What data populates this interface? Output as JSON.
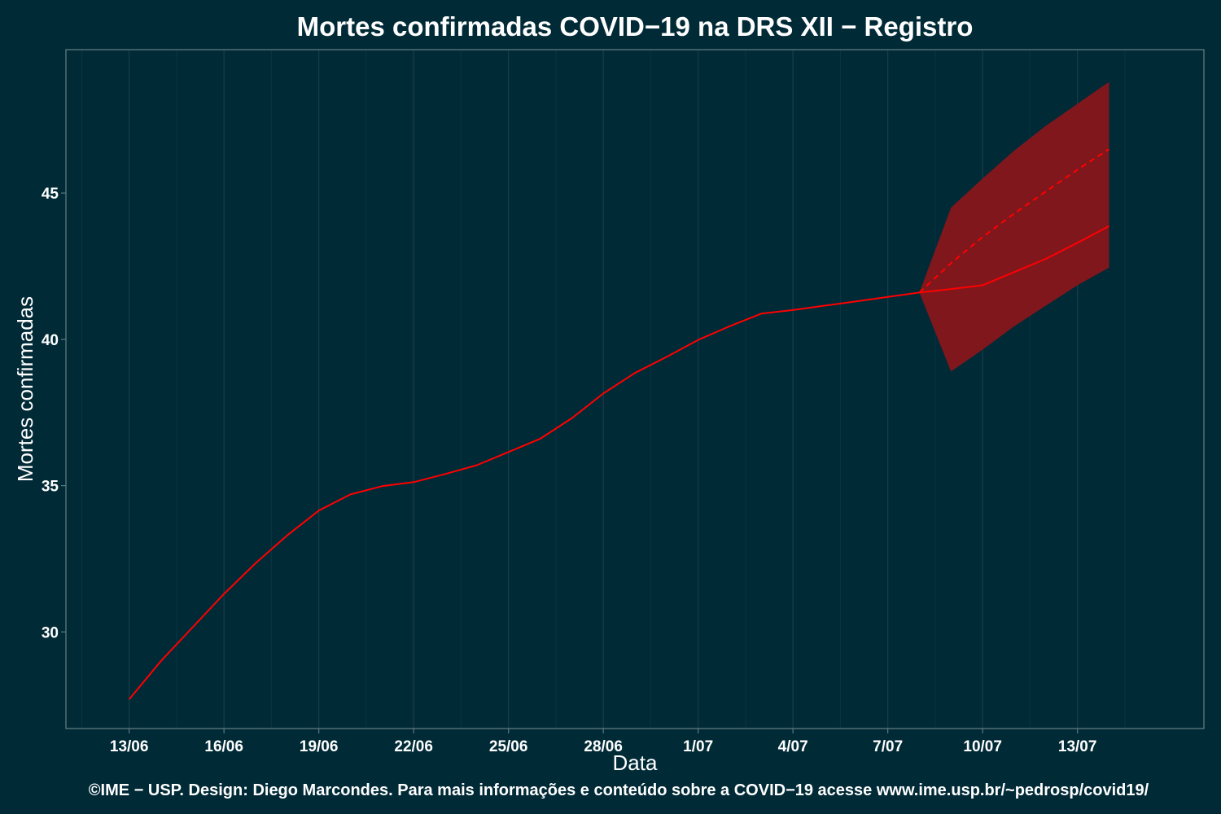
{
  "title": "Mortes confirmadas COVID−19 na DRS XII − Registro",
  "footer": "©IME − USP. Design: Diego Marcondes. Para mais informações e conteúdo sobre a COVID−19 acesse www.ime.usp.br/~pedrosp/covid19/",
  "colors": {
    "background": "#012a37",
    "line": "#ff0000",
    "band": "#80171c",
    "panel_border": "#5f7a80",
    "text": "#ffffff"
  },
  "chart_data": {
    "type": "line",
    "title": "Mortes confirmadas COVID−19 na DRS XII − Registro",
    "xlabel": "Data",
    "ylabel": "Mortes confirmadas",
    "x_tick_labels": [
      "13/06",
      "16/06",
      "19/06",
      "22/06",
      "25/06",
      "28/06",
      "1/07",
      "4/07",
      "7/07",
      "10/07",
      "13/07"
    ],
    "y_tick_labels": [
      "30",
      "35",
      "40",
      "45"
    ],
    "y_ticks": [
      30,
      35,
      40,
      45
    ],
    "x_ticks": [
      "2020-06-13",
      "2020-06-16",
      "2020-06-19",
      "2020-06-22",
      "2020-06-25",
      "2020-06-28",
      "2020-07-01",
      "2020-07-04",
      "2020-07-07",
      "2020-07-10",
      "2020-07-13"
    ],
    "xlim": [
      "2020-06-11",
      "2020-07-17"
    ],
    "ylim": [
      26.7,
      49.9
    ],
    "grid": true,
    "series": [
      {
        "style": "solid",
        "x": [
          "2020-06-13",
          "2020-06-14",
          "2020-06-15",
          "2020-06-16",
          "2020-06-17",
          "2020-06-18",
          "2020-06-19",
          "2020-06-20",
          "2020-06-21",
          "2020-06-22",
          "2020-06-23",
          "2020-06-24",
          "2020-06-25",
          "2020-06-26",
          "2020-06-27",
          "2020-06-28",
          "2020-06-29",
          "2020-06-30",
          "2020-07-01",
          "2020-07-02",
          "2020-07-03",
          "2020-07-04",
          "2020-07-05",
          "2020-07-06",
          "2020-07-07",
          "2020-07-08",
          "2020-07-09",
          "2020-07-10",
          "2020-07-11",
          "2020-07-12",
          "2020-07-13",
          "2020-07-14"
        ],
        "values": [
          27.7,
          29.0,
          30.15,
          31.3,
          32.35,
          33.3,
          34.15,
          34.7,
          34.98,
          35.12,
          35.4,
          35.7,
          36.15,
          36.6,
          37.3,
          38.15,
          38.85,
          39.4,
          39.98,
          40.45,
          40.88,
          41.0,
          41.15,
          41.3,
          41.45,
          41.6,
          41.72,
          41.85,
          42.3,
          42.75,
          43.3,
          43.87
        ]
      },
      {
        "style": "dashed",
        "x": [
          "2020-07-08",
          "2020-07-09",
          "2020-07-10",
          "2020-07-11",
          "2020-07-12",
          "2020-07-13",
          "2020-07-14"
        ],
        "values": [
          41.6,
          42.6,
          43.5,
          44.3,
          45.05,
          45.8,
          46.5
        ]
      }
    ],
    "band": {
      "x": [
        "2020-07-08",
        "2020-07-09",
        "2020-07-10",
        "2020-07-11",
        "2020-07-12",
        "2020-07-13",
        "2020-07-14"
      ],
      "upper": [
        41.6,
        44.5,
        45.5,
        46.45,
        47.3,
        48.05,
        48.8
      ],
      "lower": [
        41.6,
        38.9,
        39.65,
        40.45,
        41.15,
        41.85,
        42.45
      ]
    }
  }
}
